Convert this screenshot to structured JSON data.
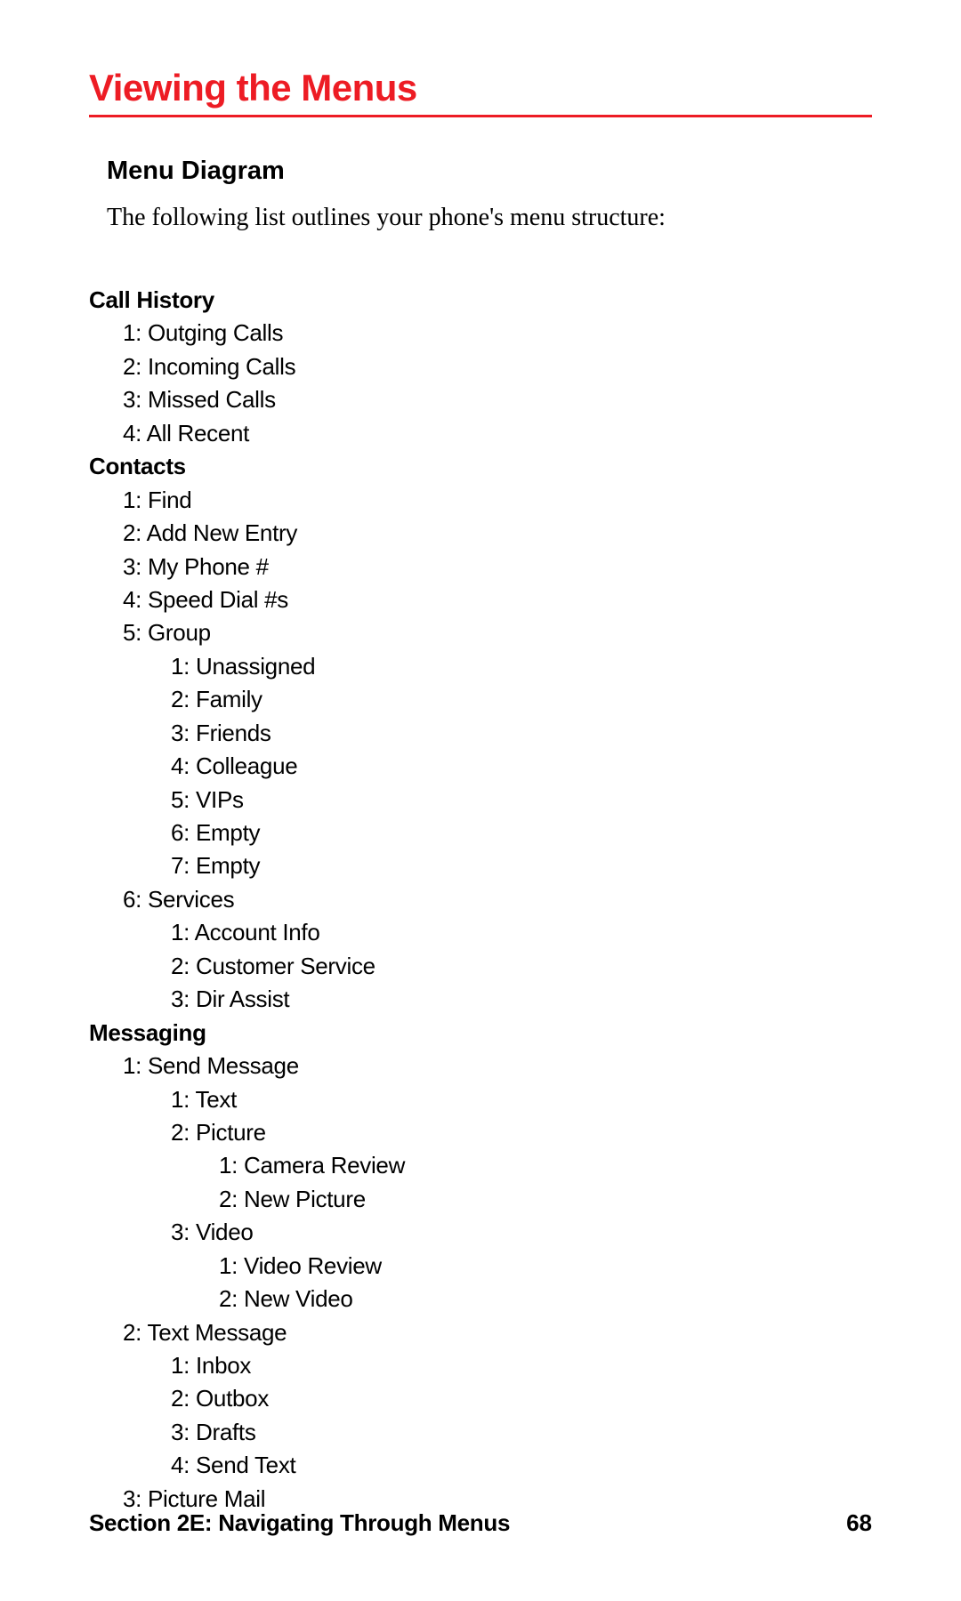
{
  "colors": {
    "accent": "#ed1c24",
    "text": "#000000",
    "background": "#ffffff"
  },
  "page": {
    "title": "Viewing the Menus",
    "subheading": "Menu Diagram",
    "intro": "The following list outlines your phone's menu structure:"
  },
  "menu": [
    {
      "indent": 0,
      "bold": true,
      "text": "Call History"
    },
    {
      "indent": 1,
      "bold": false,
      "text": "1: Outging Calls"
    },
    {
      "indent": 1,
      "bold": false,
      "text": "2: Incoming Calls"
    },
    {
      "indent": 1,
      "bold": false,
      "text": "3: Missed Calls"
    },
    {
      "indent": 1,
      "bold": false,
      "text": "4: All Recent"
    },
    {
      "indent": 0,
      "bold": true,
      "text": "Contacts"
    },
    {
      "indent": 1,
      "bold": false,
      "text": "1: Find"
    },
    {
      "indent": 1,
      "bold": false,
      "text": "2: Add New Entry"
    },
    {
      "indent": 1,
      "bold": false,
      "text": "3: My Phone #"
    },
    {
      "indent": 1,
      "bold": false,
      "text": "4: Speed Dial #s"
    },
    {
      "indent": 1,
      "bold": false,
      "text": "5: Group"
    },
    {
      "indent": 2,
      "bold": false,
      "text": "1: Unassigned"
    },
    {
      "indent": 2,
      "bold": false,
      "text": "2: Family"
    },
    {
      "indent": 2,
      "bold": false,
      "text": "3: Friends"
    },
    {
      "indent": 2,
      "bold": false,
      "text": "4: Colleague"
    },
    {
      "indent": 2,
      "bold": false,
      "text": "5: VIPs"
    },
    {
      "indent": 2,
      "bold": false,
      "text": "6: Empty"
    },
    {
      "indent": 2,
      "bold": false,
      "text": "7: Empty"
    },
    {
      "indent": 1,
      "bold": false,
      "text": "6: Services"
    },
    {
      "indent": 2,
      "bold": false,
      "text": "1: Account Info"
    },
    {
      "indent": 2,
      "bold": false,
      "text": "2: Customer Service"
    },
    {
      "indent": 2,
      "bold": false,
      "text": "3: Dir Assist"
    },
    {
      "indent": 0,
      "bold": true,
      "text": "Messaging"
    },
    {
      "indent": 1,
      "bold": false,
      "text": "1: Send Message"
    },
    {
      "indent": 2,
      "bold": false,
      "text": "1: Text"
    },
    {
      "indent": 2,
      "bold": false,
      "text": "2: Picture"
    },
    {
      "indent": 3,
      "bold": false,
      "text": "1: Camera Review"
    },
    {
      "indent": 3,
      "bold": false,
      "text": "2: New Picture"
    },
    {
      "indent": 2,
      "bold": false,
      "text": "3: Video"
    },
    {
      "indent": 3,
      "bold": false,
      "text": "1: Video Review"
    },
    {
      "indent": 3,
      "bold": false,
      "text": "2: New Video"
    },
    {
      "indent": 1,
      "bold": false,
      "text": "2: Text Message"
    },
    {
      "indent": 2,
      "bold": false,
      "text": "1: Inbox"
    },
    {
      "indent": 2,
      "bold": false,
      "text": "2: Outbox"
    },
    {
      "indent": 2,
      "bold": false,
      "text": "3: Drafts"
    },
    {
      "indent": 2,
      "bold": false,
      "text": "4: Send Text"
    },
    {
      "indent": 1,
      "bold": false,
      "text": "3: Picture Mail"
    }
  ],
  "footer": {
    "section": "Section 2E: Navigating Through Menus",
    "page_number": "68"
  }
}
